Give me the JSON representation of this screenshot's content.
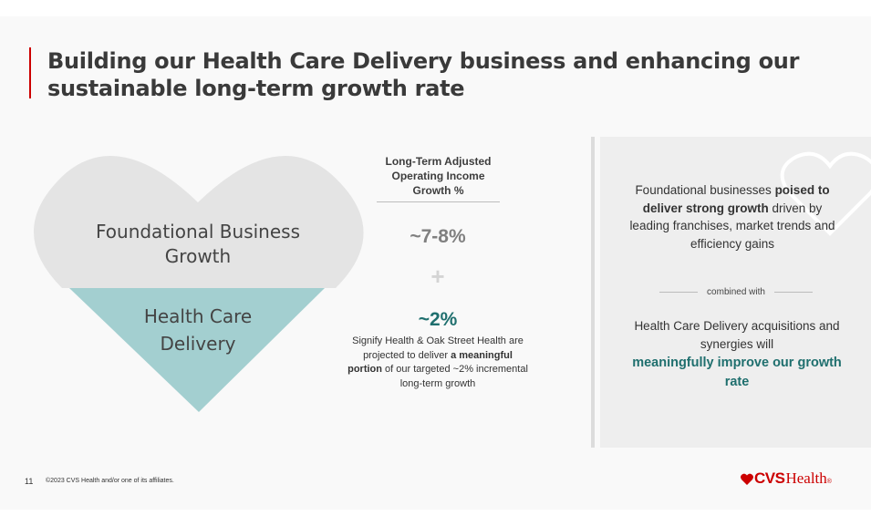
{
  "slide": {
    "title": "Building our Health Care Delivery business and enhancing our sustainable long-term growth rate",
    "page_number": "11",
    "copyright": "©2023 CVS Health and/or one of its affiliates."
  },
  "heart": {
    "top_label": "Foundational Business Growth",
    "bottom_label": "Health Care Delivery",
    "colors": {
      "top": "#e4e4e4",
      "bottom": "#a3cfd0"
    }
  },
  "metric": {
    "header": "Long-Term Adjusted Operating Income Growth %",
    "foundational_value": "~7-8%",
    "plus_symbol": "+",
    "hcd_value": "~2%",
    "note_part1": "Signify Health & Oak Street Health are projected to deliver",
    "note_bold": "a meaningful portion",
    "note_part2": "of our targeted ~2% incremental long-term growth"
  },
  "panel": {
    "text1_part1": "Foundational businesses",
    "text1_bold": "poised to deliver strong growth",
    "text1_part2": "driven by leading franchises, market trends and efficiency gains",
    "combined": "combined with",
    "text2": "Health Care Delivery acquisitions and synergies will",
    "text2_bold": "meaningfully improve our growth rate"
  },
  "logo": {
    "brand_bold": "CVS",
    "brand_regular": "Health",
    "trademark": "®",
    "color": "#cc0000"
  }
}
